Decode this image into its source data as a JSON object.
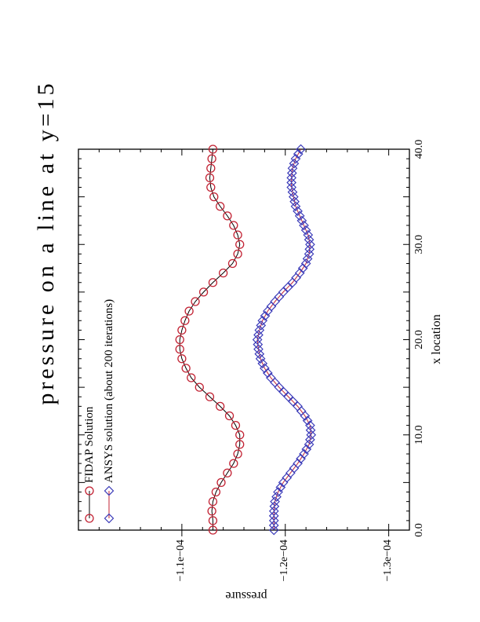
{
  "page": {
    "background": "#ffffff",
    "axis_color": "#000000"
  },
  "chart_data": {
    "type": "line",
    "title": "pressure on a line at y=15",
    "xlabel": "x location",
    "ylabel": "pressure",
    "x_range": [
      0,
      40
    ],
    "y_range": [
      -1.32,
      -1.0
    ],
    "y_unit": "1e-04",
    "grid": false,
    "legend": {
      "position": "top-left-inside"
    },
    "x_ticks": [
      {
        "x": 0,
        "label": "0.0"
      },
      {
        "x": 10,
        "label": "10.0"
      },
      {
        "x": 20,
        "label": "20.0"
      },
      {
        "x": 30,
        "label": "30.0"
      },
      {
        "x": 40,
        "label": "40.0"
      }
    ],
    "x_minor_tick_step": 1,
    "x_major_tick_step": 5,
    "y_ticks": [
      {
        "value": -1.1,
        "label": "−1.1e−04"
      },
      {
        "value": -1.2,
        "label": "−1.2e−04"
      },
      {
        "value": -1.3,
        "label": "−1.3e−04"
      }
    ],
    "y_minor_tick_step": 0.02,
    "series": [
      {
        "name": "FIDAP Solution",
        "marker": "circle",
        "marker_color": "#c22233",
        "line_color": "#000000",
        "x": [
          0,
          1,
          2,
          3,
          4,
          5,
          6,
          7,
          8,
          9,
          10,
          11,
          12,
          13,
          14,
          15,
          16,
          17,
          18,
          19,
          20,
          21,
          22,
          23,
          24,
          25,
          26,
          27,
          28,
          29,
          30,
          31,
          32,
          33,
          34,
          35,
          36,
          37,
          38,
          39,
          40
        ],
        "values": [
          -1.13,
          -1.13,
          -1.129,
          -1.13,
          -1.133,
          -1.138,
          -1.144,
          -1.15,
          -1.154,
          -1.156,
          -1.156,
          -1.152,
          -1.146,
          -1.137,
          -1.127,
          -1.117,
          -1.109,
          -1.104,
          -1.1,
          -1.098,
          -1.098,
          -1.1,
          -1.103,
          -1.107,
          -1.113,
          -1.121,
          -1.13,
          -1.14,
          -1.149,
          -1.154,
          -1.156,
          -1.154,
          -1.15,
          -1.144,
          -1.137,
          -1.131,
          -1.128,
          -1.127,
          -1.128,
          -1.129,
          -1.13
        ]
      },
      {
        "name": "ANSYS solution (about 200 iterations)",
        "marker": "diamond",
        "marker_color": "#3a3ab8",
        "line_color": "#c22233",
        "x": [
          0,
          0.5,
          1,
          1.5,
          2,
          2.5,
          3,
          3.5,
          4,
          4.5,
          5,
          5.5,
          6,
          6.5,
          7,
          7.5,
          8,
          8.5,
          9,
          9.5,
          10,
          10.5,
          11,
          11.5,
          12,
          12.5,
          13,
          13.5,
          14,
          14.5,
          15,
          15.5,
          16,
          16.5,
          17,
          17.5,
          18,
          18.5,
          19,
          19.5,
          20,
          20.5,
          21,
          21.5,
          22,
          22.5,
          23,
          23.5,
          24,
          24.5,
          25,
          25.5,
          26,
          26.5,
          27,
          27.5,
          28,
          28.5,
          29,
          29.5,
          30,
          30.5,
          31,
          31.5,
          32,
          32.5,
          33,
          33.5,
          34,
          34.5,
          35,
          35.5,
          36,
          36.5,
          37,
          37.5,
          38,
          38.5,
          39,
          39.5,
          40
        ],
        "values": [
          -1.189,
          -1.189,
          -1.189,
          -1.189,
          -1.189,
          -1.1895,
          -1.19,
          -1.1915,
          -1.193,
          -1.1955,
          -1.198,
          -1.2015,
          -1.205,
          -1.2085,
          -1.212,
          -1.215,
          -1.218,
          -1.2205,
          -1.223,
          -1.224,
          -1.225,
          -1.2245,
          -1.224,
          -1.2215,
          -1.219,
          -1.2155,
          -1.212,
          -1.2075,
          -1.203,
          -1.1985,
          -1.194,
          -1.19,
          -1.186,
          -1.183,
          -1.18,
          -1.178,
          -1.176,
          -1.175,
          -1.174,
          -1.1735,
          -1.173,
          -1.174,
          -1.175,
          -1.1765,
          -1.178,
          -1.1805,
          -1.183,
          -1.1865,
          -1.19,
          -1.194,
          -1.198,
          -1.2025,
          -1.207,
          -1.2105,
          -1.214,
          -1.217,
          -1.22,
          -1.2215,
          -1.223,
          -1.2235,
          -1.224,
          -1.223,
          -1.222,
          -1.22,
          -1.218,
          -1.216,
          -1.214,
          -1.212,
          -1.21,
          -1.209,
          -1.208,
          -1.207,
          -1.206,
          -1.206,
          -1.206,
          -1.2065,
          -1.207,
          -1.2085,
          -1.21,
          -1.2125,
          -1.215
        ]
      }
    ]
  }
}
